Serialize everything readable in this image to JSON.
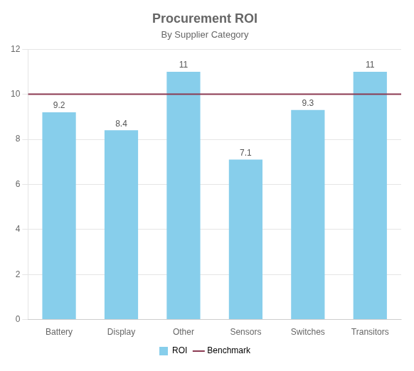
{
  "chart_data": {
    "type": "bar",
    "title": "Procurement ROI",
    "subtitle": "By Supplier Category",
    "categories": [
      "Battery",
      "Display",
      "Other",
      "Sensors",
      "Switches",
      "Transitors"
    ],
    "series": [
      {
        "name": "ROI",
        "color": "#87CEEB",
        "values": [
          9.2,
          8.4,
          11,
          7.1,
          9.3,
          11
        ]
      }
    ],
    "benchmark": {
      "name": "Benchmark",
      "value": 10,
      "color": "#8B3A52"
    },
    "ylim": [
      0,
      12
    ],
    "yticks": [
      0,
      2,
      4,
      6,
      8,
      10,
      12
    ],
    "grid": true,
    "legend": "bottom",
    "data_labels": true
  }
}
